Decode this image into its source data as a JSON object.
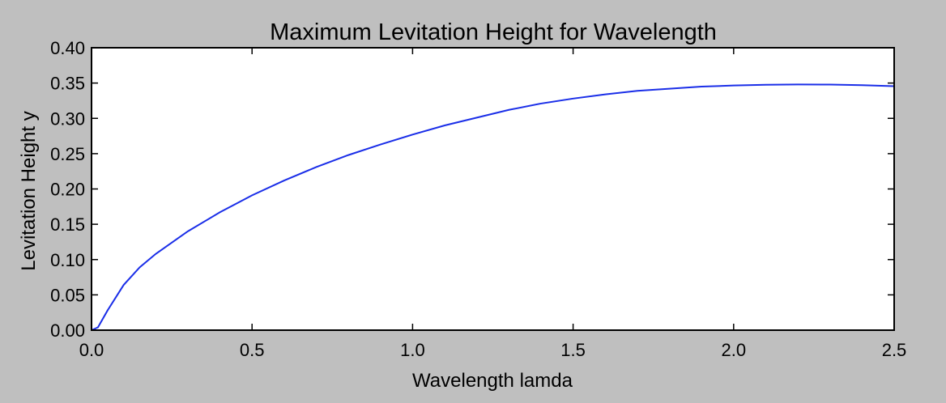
{
  "chart_data": {
    "type": "line",
    "title": "Maximum Levitation Height for Wavelength",
    "xlabel": "Wavelength lamda",
    "ylabel": "Levitation Height y",
    "xlim": [
      0.0,
      2.5
    ],
    "ylim": [
      0.0,
      0.4
    ],
    "xticks": [
      "0.0",
      "0.5",
      "1.0",
      "1.5",
      "2.0",
      "2.5"
    ],
    "yticks": [
      "0.00",
      "0.05",
      "0.10",
      "0.15",
      "0.20",
      "0.25",
      "0.30",
      "0.35",
      "0.40"
    ],
    "grid": false,
    "legend": "none",
    "line_color": "#1a2ee8",
    "series": [
      {
        "x": [
          0.0,
          0.02,
          0.05,
          0.1,
          0.15,
          0.2,
          0.3,
          0.4,
          0.5,
          0.6,
          0.7,
          0.8,
          0.9,
          1.0,
          1.1,
          1.2,
          1.3,
          1.4,
          1.5,
          1.6,
          1.7,
          1.8,
          1.9,
          2.0,
          2.1,
          2.2,
          2.3,
          2.4,
          2.5
        ],
        "y": [
          0.0,
          0.004,
          0.028,
          0.064,
          0.089,
          0.108,
          0.14,
          0.167,
          0.191,
          0.212,
          0.231,
          0.248,
          0.263,
          0.277,
          0.29,
          0.301,
          0.312,
          0.321,
          0.328,
          0.334,
          0.339,
          0.342,
          0.345,
          0.3465,
          0.3475,
          0.348,
          0.3478,
          0.347,
          0.3455
        ]
      }
    ]
  }
}
